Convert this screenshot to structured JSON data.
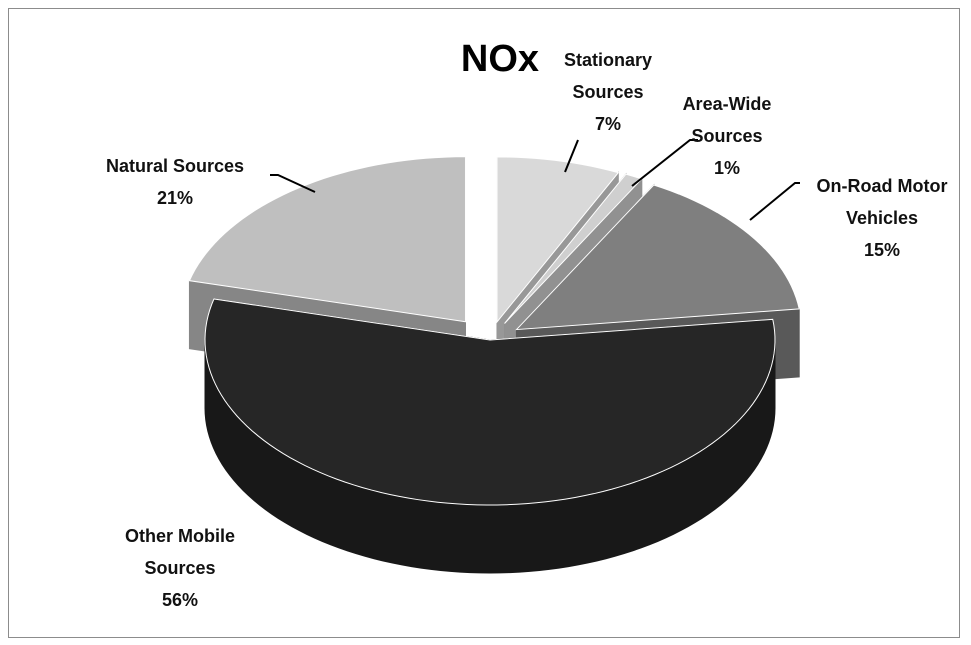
{
  "chart_data": {
    "type": "pie",
    "title": "NOx",
    "categories": [
      "Stationary Sources",
      "Area-Wide Sources",
      "On-Road Motor Vehicles",
      "Other Mobile Sources",
      "Natural Sources"
    ],
    "values": [
      7,
      1,
      15,
      56,
      21
    ],
    "value_labels": [
      "7%",
      "1%",
      "15%",
      "56%",
      "21%"
    ],
    "colors": [
      "#d9d9d9",
      "#cfcfcf",
      "#7f7f7f",
      "#262626",
      "#bfbfbf"
    ]
  }
}
